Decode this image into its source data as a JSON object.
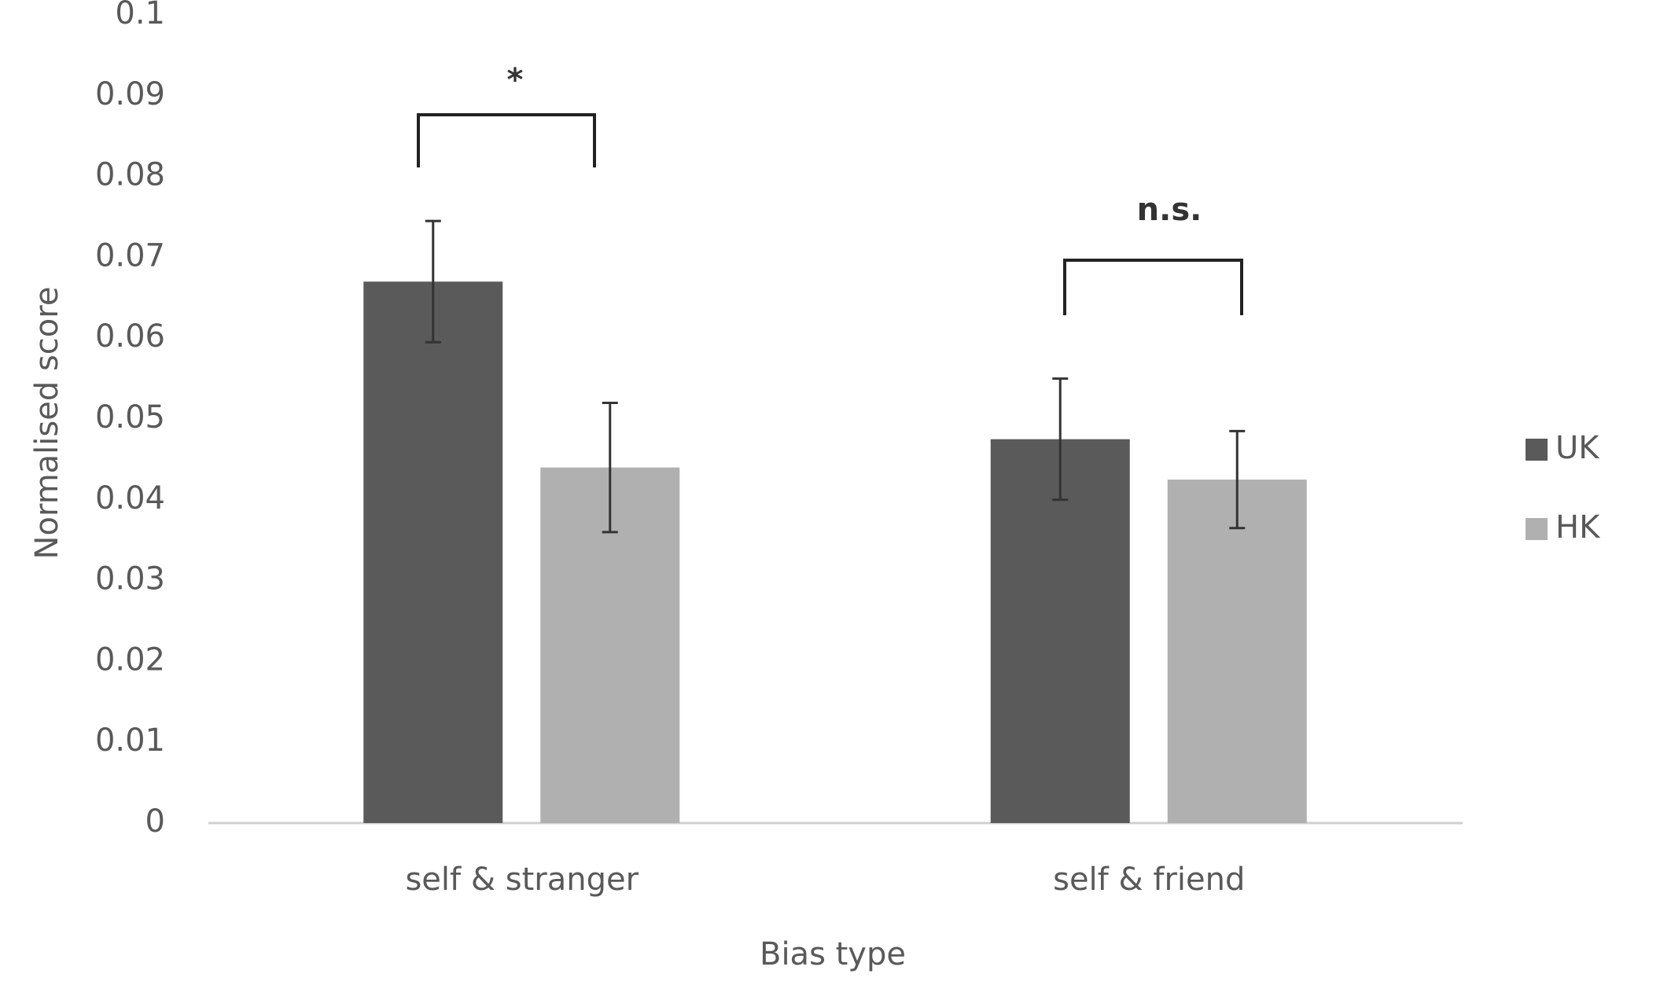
{
  "chart_data": {
    "type": "bar",
    "x_label": "Bias type",
    "y_label": "Normalised score",
    "categories": [
      "self & stranger",
      "self & friend"
    ],
    "series": [
      {
        "name": "UK",
        "color": "#5a5a5a",
        "values": [
          0.067,
          0.0475
        ],
        "errors": [
          0.0075,
          0.0075
        ]
      },
      {
        "name": "HK",
        "color": "#b0b0b0",
        "values": [
          0.044,
          0.0425
        ],
        "errors": [
          0.008,
          0.006
        ]
      }
    ],
    "annotations": [
      "*",
      "n.s."
    ],
    "ylim": [
      0,
      0.1
    ],
    "yticks": [
      0,
      0.01,
      0.02,
      0.03,
      0.04,
      0.05,
      0.06,
      0.07,
      0.08,
      0.09,
      0.1
    ],
    "grid": false,
    "legend": "right"
  }
}
